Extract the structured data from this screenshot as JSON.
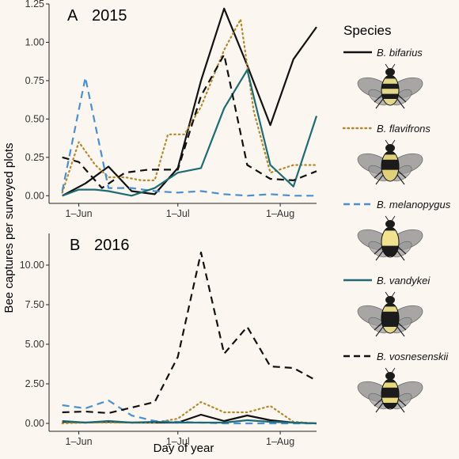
{
  "figure": {
    "ylabel": "Bee captures per surveyed plots",
    "xlabel": "Day of year",
    "legend_title": "Species"
  },
  "chart_data": [
    {
      "type": "line",
      "panel_letter": "A",
      "title": "2015",
      "xlabel": "Day of year",
      "ylabel": "Bee captures per surveyed plots",
      "xlim": [
        "2015-05-23",
        "2015-08-12"
      ],
      "ylim": [
        -0.05,
        1.25
      ],
      "yticks": [
        "0.00",
        "0.25",
        "0.50",
        "0.75",
        "1.00",
        "1.25"
      ],
      "xticks": [
        {
          "date": "2015-06-01",
          "label": "1–Jun"
        },
        {
          "date": "2015-07-01",
          "label": "1–Jul"
        },
        {
          "date": "2015-08-01",
          "label": "1–Aug"
        }
      ],
      "grid": false,
      "legend_position": "right",
      "series": [
        {
          "name": "B. bifarius",
          "key": "bifarius",
          "color": "#111111",
          "linestyle": "solid",
          "x": [
            "2015-05-27",
            "2015-06-03",
            "2015-06-10",
            "2015-06-17",
            "2015-06-24",
            "2015-07-01",
            "2015-07-08",
            "2015-07-15",
            "2015-07-22",
            "2015-07-29",
            "2015-08-05",
            "2015-08-12"
          ],
          "y": [
            0.0,
            0.08,
            0.19,
            0.03,
            0.01,
            0.18,
            0.75,
            1.22,
            0.85,
            0.46,
            0.89,
            1.1
          ]
        },
        {
          "name": "B. flavifrons",
          "key": "flavifrons",
          "color": "#b5872a",
          "linestyle": "dotted",
          "x": [
            "2015-05-27",
            "2015-06-01",
            "2015-06-06",
            "2015-06-10",
            "2015-06-15",
            "2015-06-20",
            "2015-06-24",
            "2015-06-28",
            "2015-07-03",
            "2015-07-08",
            "2015-07-15",
            "2015-07-20",
            "2015-07-24",
            "2015-07-29",
            "2015-08-05",
            "2015-08-12"
          ],
          "y": [
            0.02,
            0.35,
            0.2,
            0.12,
            0.12,
            0.1,
            0.1,
            0.4,
            0.4,
            0.58,
            0.95,
            1.15,
            0.55,
            0.15,
            0.2,
            0.2
          ]
        },
        {
          "name": "B. melanopygus",
          "key": "melanopygus",
          "color": "#4a8fcf",
          "linestyle": "dashed",
          "x": [
            "2015-05-27",
            "2015-06-03",
            "2015-06-10",
            "2015-06-17",
            "2015-06-24",
            "2015-07-01",
            "2015-07-08",
            "2015-07-15",
            "2015-07-22",
            "2015-07-29",
            "2015-08-05",
            "2015-08-12"
          ],
          "y": [
            0.03,
            0.77,
            0.05,
            0.05,
            0.03,
            0.02,
            0.03,
            0.01,
            0.0,
            0.01,
            0.0,
            0.0
          ]
        },
        {
          "name": "B. vandykei",
          "key": "vandykei",
          "color": "#1d6b74",
          "linestyle": "solid",
          "x": [
            "2015-05-27",
            "2015-06-01",
            "2015-06-06",
            "2015-06-10",
            "2015-06-17",
            "2015-06-24",
            "2015-07-01",
            "2015-07-08",
            "2015-07-15",
            "2015-07-22",
            "2015-07-29",
            "2015-08-05",
            "2015-08-12"
          ],
          "y": [
            0.0,
            0.04,
            0.04,
            0.03,
            0.0,
            0.05,
            0.15,
            0.18,
            0.57,
            0.82,
            0.2,
            0.06,
            0.52
          ]
        },
        {
          "name": "B. vosnesenskii",
          "key": "vosnesenskii",
          "color": "#111111",
          "linestyle": "dashed",
          "x": [
            "2015-05-27",
            "2015-06-01",
            "2015-06-08",
            "2015-06-15",
            "2015-06-22",
            "2015-07-01",
            "2015-07-08",
            "2015-07-15",
            "2015-07-22",
            "2015-07-29",
            "2015-08-05",
            "2015-08-12"
          ],
          "y": [
            0.25,
            0.22,
            0.05,
            0.15,
            0.17,
            0.17,
            0.65,
            0.92,
            0.2,
            0.11,
            0.1,
            0.16
          ]
        }
      ]
    },
    {
      "type": "line",
      "panel_letter": "B",
      "title": "2016",
      "xlabel": "Day of year",
      "ylabel": "Bee captures per surveyed plots",
      "xlim": [
        "2016-05-23",
        "2016-08-12"
      ],
      "ylim": [
        -0.5,
        12.0
      ],
      "yticks": [
        "0.00",
        "2.50",
        "5.00",
        "7.50",
        "10.00"
      ],
      "xticks": [
        {
          "date": "2016-06-01",
          "label": "1–Jun"
        },
        {
          "date": "2016-07-01",
          "label": "1–Jul"
        },
        {
          "date": "2016-08-01",
          "label": "1–Aug"
        }
      ],
      "grid": false,
      "legend_position": "right",
      "series": [
        {
          "name": "B. bifarius",
          "key": "bifarius",
          "color": "#111111",
          "linestyle": "solid",
          "x": [
            "2016-05-27",
            "2016-06-03",
            "2016-06-10",
            "2016-06-17",
            "2016-06-24",
            "2016-07-01",
            "2016-07-08",
            "2016-07-15",
            "2016-07-22",
            "2016-07-29",
            "2016-08-05",
            "2016-08-12"
          ],
          "y": [
            0.1,
            0.05,
            0.1,
            0.05,
            0.05,
            0.05,
            0.55,
            0.15,
            0.5,
            0.2,
            0.05,
            0.0
          ]
        },
        {
          "name": "B. flavifrons",
          "key": "flavifrons",
          "color": "#b5872a",
          "linestyle": "dotted",
          "x": [
            "2016-05-27",
            "2016-06-03",
            "2016-06-10",
            "2016-06-17",
            "2016-06-24",
            "2016-07-01",
            "2016-07-08",
            "2016-07-15",
            "2016-07-22",
            "2016-07-29",
            "2016-08-05",
            "2016-08-12"
          ],
          "y": [
            0.0,
            0.05,
            0.05,
            0.05,
            0.05,
            0.3,
            1.35,
            0.7,
            0.7,
            1.1,
            0.1,
            0.0
          ]
        },
        {
          "name": "B. melanopygus",
          "key": "melanopygus",
          "color": "#4a8fcf",
          "linestyle": "dashed",
          "x": [
            "2016-05-27",
            "2016-06-03",
            "2016-06-10",
            "2016-06-17",
            "2016-06-24",
            "2016-07-01",
            "2016-07-08",
            "2016-07-15",
            "2016-07-22",
            "2016-07-29",
            "2016-08-05",
            "2016-08-12"
          ],
          "y": [
            1.15,
            0.95,
            1.45,
            0.5,
            0.15,
            0.1,
            0.05,
            0.0,
            0.0,
            0.0,
            0.0,
            0.0
          ]
        },
        {
          "name": "B. vandykei",
          "key": "vandykei",
          "color": "#1d6b74",
          "linestyle": "solid",
          "x": [
            "2016-05-27",
            "2016-06-03",
            "2016-06-10",
            "2016-06-17",
            "2016-06-24",
            "2016-07-01",
            "2016-07-08",
            "2016-07-15",
            "2016-07-22",
            "2016-07-29",
            "2016-08-05",
            "2016-08-12"
          ],
          "y": [
            0.15,
            0.05,
            0.15,
            0.05,
            0.1,
            0.05,
            0.05,
            0.05,
            0.2,
            0.1,
            0.05,
            0.0
          ]
        },
        {
          "name": "B. vosnesenskii",
          "key": "vosnesenskii",
          "color": "#111111",
          "linestyle": "dashed",
          "x": [
            "2016-05-27",
            "2016-06-03",
            "2016-06-10",
            "2016-06-17",
            "2016-06-24",
            "2016-07-01",
            "2016-07-08",
            "2016-07-15",
            "2016-07-22",
            "2016-07-29",
            "2016-08-05",
            "2016-08-12"
          ],
          "y": [
            0.7,
            0.75,
            0.65,
            1.0,
            1.35,
            4.2,
            10.8,
            4.4,
            6.1,
            3.6,
            3.5,
            2.7
          ]
        }
      ]
    }
  ],
  "legend": {
    "title": "Species",
    "items": [
      {
        "name": "B. bifarius",
        "color": "#111111",
        "linestyle": "solid",
        "icon": "bumblebee-bifarius-icon"
      },
      {
        "name": "B. flavifrons",
        "color": "#b5872a",
        "linestyle": "dotted",
        "icon": "bumblebee-flavifrons-icon"
      },
      {
        "name": "B. melanopygus",
        "color": "#4a8fcf",
        "linestyle": "dashed",
        "icon": "bumblebee-melanopygus-icon"
      },
      {
        "name": "B. vandykei",
        "color": "#1d6b74",
        "linestyle": "solid",
        "icon": "bumblebee-vandykei-icon"
      },
      {
        "name": "B. vosnesenskii",
        "color": "#111111",
        "linestyle": "dashed",
        "icon": "bumblebee-vosnesenskii-icon"
      }
    ]
  }
}
